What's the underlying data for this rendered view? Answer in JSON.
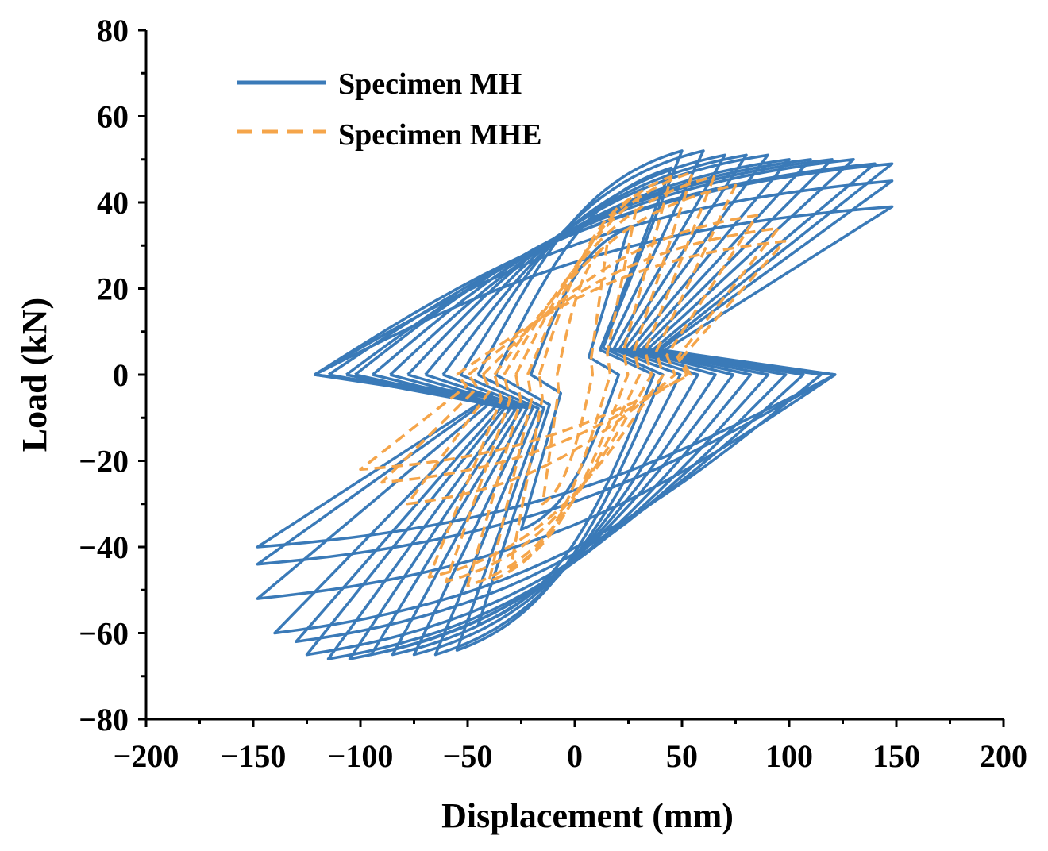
{
  "chart_data": {
    "type": "line",
    "title": "",
    "xlabel": "Displacement (mm)",
    "ylabel": "Load (kN)",
    "xlim": [
      -200,
      200
    ],
    "ylim": [
      -80,
      80
    ],
    "x_ticks": [
      -200,
      -150,
      -100,
      -50,
      0,
      50,
      100,
      150,
      200
    ],
    "y_ticks": [
      -80,
      -60,
      -40,
      -20,
      0,
      20,
      40,
      60,
      80
    ],
    "x_tick_labels": [
      "−200",
      "−150",
      "−100",
      "−50",
      "0",
      "50",
      "100",
      "150",
      "200"
    ],
    "y_tick_labels": [
      "−80",
      "−60",
      "−40",
      "−20",
      "0",
      "20",
      "40",
      "60",
      "80"
    ],
    "grid": false,
    "legend_position": "top-left",
    "series": [
      {
        "name": "Specimen MH",
        "color": "#3a7ab8",
        "line_style": "solid",
        "loops": [
          {
            "dmax": 25,
            "fmax": 34,
            "dmin": -25,
            "fmin": -36
          },
          {
            "dmax": 45,
            "fmax": 48,
            "dmin": -45,
            "fmin": -58
          },
          {
            "dmax": 50,
            "fmax": 52,
            "dmin": -55,
            "fmin": -64
          },
          {
            "dmax": 60,
            "fmax": 52,
            "dmin": -65,
            "fmin": -65
          },
          {
            "dmax": 70,
            "fmax": 51,
            "dmin": -75,
            "fmin": -65
          },
          {
            "dmax": 80,
            "fmax": 51,
            "dmin": -85,
            "fmin": -65
          },
          {
            "dmax": 90,
            "fmax": 51,
            "dmin": -95,
            "fmin": -65
          },
          {
            "dmax": 100,
            "fmax": 50,
            "dmin": -105,
            "fmin": -66
          },
          {
            "dmax": 110,
            "fmax": 50,
            "dmin": -115,
            "fmin": -66
          },
          {
            "dmax": 120,
            "fmax": 50,
            "dmin": -125,
            "fmin": -65
          },
          {
            "dmax": 130,
            "fmax": 50,
            "dmin": -130,
            "fmin": -62
          },
          {
            "dmax": 140,
            "fmax": 49,
            "dmin": -140,
            "fmin": -60
          },
          {
            "dmax": 148,
            "fmax": 49,
            "dmin": -148,
            "fmin": -52
          },
          {
            "dmax": 148,
            "fmax": 45,
            "dmin": -148,
            "fmin": -44
          },
          {
            "dmax": 148,
            "fmax": 39,
            "dmin": -148,
            "fmin": -40
          }
        ]
      },
      {
        "name": "Specimen MHE",
        "color": "#f5a54a",
        "line_style": "dashed",
        "loops": [
          {
            "dmax": 15,
            "fmax": 30,
            "dmin": -15,
            "fmin": -30
          },
          {
            "dmax": 30,
            "fmax": 42,
            "dmin": -30,
            "fmin": -45
          },
          {
            "dmax": 45,
            "fmax": 46,
            "dmin": -40,
            "fmin": -48
          },
          {
            "dmax": 55,
            "fmax": 47,
            "dmin": -50,
            "fmin": -49
          },
          {
            "dmax": 65,
            "fmax": 46,
            "dmin": -60,
            "fmin": -48
          },
          {
            "dmax": 75,
            "fmax": 44,
            "dmin": -68,
            "fmin": -47
          },
          {
            "dmax": 85,
            "fmax": 37,
            "dmin": -78,
            "fmin": -30
          },
          {
            "dmax": 95,
            "fmax": 34,
            "dmin": -90,
            "fmin": -25
          },
          {
            "dmax": 98,
            "fmax": 31,
            "dmin": -100,
            "fmin": -22
          }
        ]
      }
    ]
  }
}
